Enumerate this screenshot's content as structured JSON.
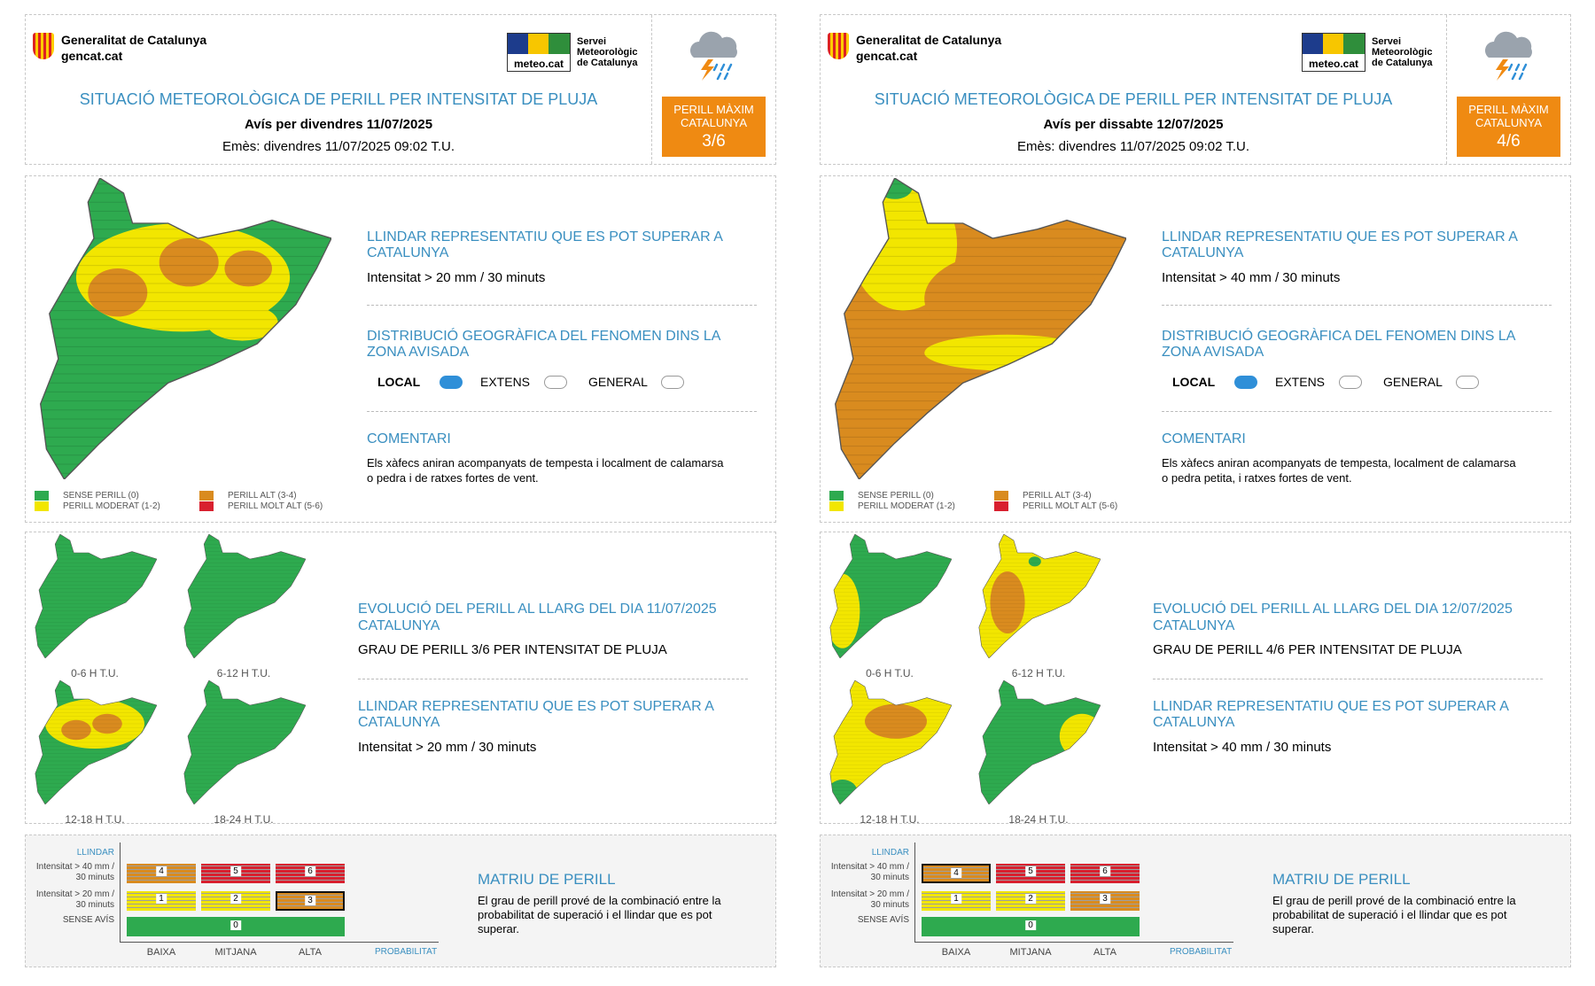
{
  "legend": [
    {
      "label": "SENSE PERILL (0)",
      "color": "#2eaa4f"
    },
    {
      "label": "PERILL MODERAT (1-2)",
      "color": "#f2e600"
    },
    {
      "label": "PERILL ALT (3-4)",
      "color": "#d98b1f"
    },
    {
      "label": "PERILL MOLT ALT (5-6)",
      "color": "#d8202f"
    }
  ],
  "panels": [
    {
      "org": "Generalitat de Catalunya",
      "site": "gencat.cat",
      "service_logo": "meteo.cat",
      "service": [
        "Servei",
        "Meteorològic",
        "de Catalunya"
      ],
      "title": "SITUACIÓ METEOROLÒGICA DE PERILL PER INTENSITAT DE PLUJA",
      "date_line": "Avís per divendres 11/07/2025",
      "issued": "Emès: divendres 11/07/2025 09:02 T.U.",
      "max_label": [
        "PERILL MÀXIM",
        "CATALUNYA"
      ],
      "max_value": "3/6",
      "threshold_title": "LLINDAR REPRESENTATIU QUE ES POT SUPERAR A CATALUNYA",
      "threshold_text": "Intensitat > 20 mm / 30 minuts",
      "distribution_title": "DISTRIBUCIÓ GEOGRÀFICA DEL FENOMEN DINS LA ZONA AVISADA",
      "distribution_options": [
        {
          "label": "LOCAL",
          "selected": true
        },
        {
          "label": "EXTENS",
          "selected": false
        },
        {
          "label": "GENERAL",
          "selected": false
        }
      ],
      "comment_title": "COMENTARI",
      "comment": "Els xàfecs aniran acompanyats de tempesta i localment de calamarsa o pedra i de ratxes fortes de vent.",
      "evolution_title": "EVOLUCIÓ DEL PERILL AL LLARG DEL DIA 11/07/2025",
      "evolution_area": "CATALUNYA",
      "evolution_level": "GRAU DE PERILL 3/6 PER INTENSITAT DE PLUJA",
      "evolution_maps": [
        "0-6 H T.U.",
        "6-12 H T.U.",
        "12-18 H T.U.",
        "18-24 H T.U."
      ],
      "evolution_threshold_title": "LLINDAR REPRESENTATIU QUE ES POT SUPERAR A CATALUNYA",
      "evolution_threshold_text": "Intensitat > 20 mm / 30 minuts",
      "matrix": {
        "axis_title": "LLINDAR",
        "rows": [
          "Intensitat > 40 mm / 30 minuts",
          "Intensitat > 20 mm / 30 minuts",
          "SENSE AVÍS"
        ],
        "cells": [
          [
            4,
            5,
            6
          ],
          [
            1,
            2,
            3
          ]
        ],
        "cell_colors": [
          [
            "#d98b1f",
            "#d8202f",
            "#d8202f"
          ],
          [
            "#f2e600",
            "#f2e600",
            "#d98b1f"
          ]
        ],
        "none_cell": 0,
        "none_color": "#2eaa4f",
        "highlight": [
          1,
          2
        ],
        "columns": [
          "BAIXA",
          "MITJANA",
          "ALTA"
        ],
        "x_axis_title": "PROBABILITAT",
        "title": "MATRIU DE PERILL",
        "text": "El grau de perill prové de la combinació entre la probabilitat de superació i el llindar que es pot superar."
      }
    },
    {
      "org": "Generalitat de Catalunya",
      "site": "gencat.cat",
      "service_logo": "meteo.cat",
      "service": [
        "Servei",
        "Meteorològic",
        "de Catalunya"
      ],
      "title": "SITUACIÓ METEOROLÒGICA DE PERILL PER INTENSITAT DE PLUJA",
      "date_line": "Avís per dissabte 12/07/2025",
      "issued": "Emès: divendres 11/07/2025 09:02 T.U.",
      "max_label": [
        "PERILL MÀXIM",
        "CATALUNYA"
      ],
      "max_value": "4/6",
      "threshold_title": "LLINDAR REPRESENTATIU QUE ES POT SUPERAR A CATALUNYA",
      "threshold_text": "Intensitat > 40 mm / 30 minuts",
      "distribution_title": "DISTRIBUCIÓ GEOGRÀFICA DEL FENOMEN DINS LA ZONA AVISADA",
      "distribution_options": [
        {
          "label": "LOCAL",
          "selected": true
        },
        {
          "label": "EXTENS",
          "selected": false
        },
        {
          "label": "GENERAL",
          "selected": false
        }
      ],
      "comment_title": "COMENTARI",
      "comment": "Els xàfecs aniran acompanyats de tempesta, localment de calamarsa o pedra petita, i ratxes fortes de vent.",
      "evolution_title": "EVOLUCIÓ DEL PERILL AL LLARG DEL DIA 12/07/2025",
      "evolution_area": "CATALUNYA",
      "evolution_level": "GRAU DE PERILL 4/6 PER INTENSITAT DE PLUJA",
      "evolution_maps": [
        "0-6 H T.U.",
        "6-12 H T.U.",
        "12-18 H T.U.",
        "18-24 H T.U."
      ],
      "evolution_threshold_title": "LLINDAR REPRESENTATIU QUE ES POT SUPERAR A CATALUNYA",
      "evolution_threshold_text": "Intensitat > 40 mm / 30 minuts",
      "matrix": {
        "axis_title": "LLINDAR",
        "rows": [
          "Intensitat > 40 mm / 30 minuts",
          "Intensitat > 20 mm / 30 minuts",
          "SENSE AVÍS"
        ],
        "cells": [
          [
            4,
            5,
            6
          ],
          [
            1,
            2,
            3
          ]
        ],
        "cell_colors": [
          [
            "#d98b1f",
            "#d8202f",
            "#d8202f"
          ],
          [
            "#f2e600",
            "#f2e600",
            "#d98b1f"
          ]
        ],
        "none_cell": 0,
        "none_color": "#2eaa4f",
        "highlight": [
          0,
          0
        ],
        "columns": [
          "BAIXA",
          "MITJANA",
          "ALTA"
        ],
        "x_axis_title": "PROBABILITAT",
        "title": "MATRIU DE PERILL",
        "text": "El grau de perill prové de la combinació entre la probabilitat de superació i el llindar que es pot superar."
      }
    }
  ]
}
